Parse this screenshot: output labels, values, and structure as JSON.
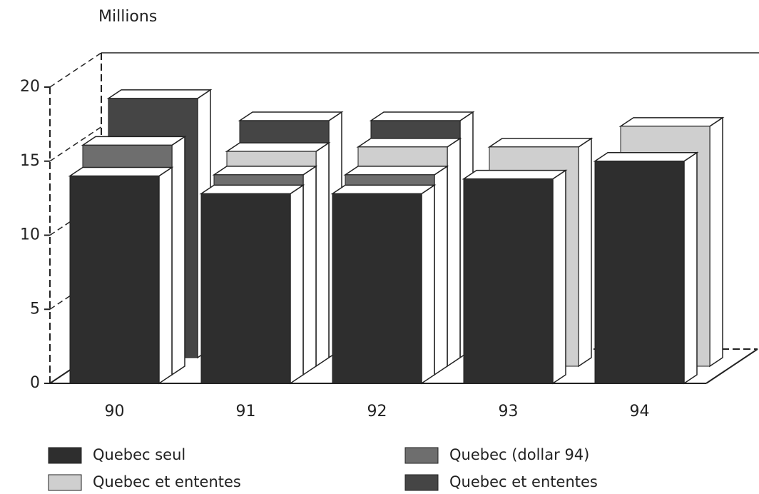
{
  "chart_data": {
    "type": "bar3d",
    "y_label": "Millions",
    "categories": [
      "90",
      "91",
      "92",
      "93",
      "94"
    ],
    "series": [
      {
        "name": "Quebec seul",
        "color": "#2e2e2e",
        "values": [
          14,
          12.8,
          12.8,
          13.8,
          15
        ]
      },
      {
        "name": "Quebec (dollar 94)",
        "color": "#6e6e6e",
        "values": [
          15.5,
          13.5,
          13.5,
          null,
          null
        ]
      },
      {
        "name": "Quebec  et ententes",
        "color": "#cfcfcf",
        "values": [
          null,
          14.5,
          14.8,
          14.8,
          16.2
        ]
      },
      {
        "name": "Quebec  et ententes",
        "color": "#454545",
        "values": [
          17.5,
          16,
          16,
          null,
          null
        ]
      }
    ],
    "ylim": [
      0,
      20
    ],
    "yticks": [
      0,
      5,
      10,
      15,
      20
    ],
    "grid": true
  }
}
